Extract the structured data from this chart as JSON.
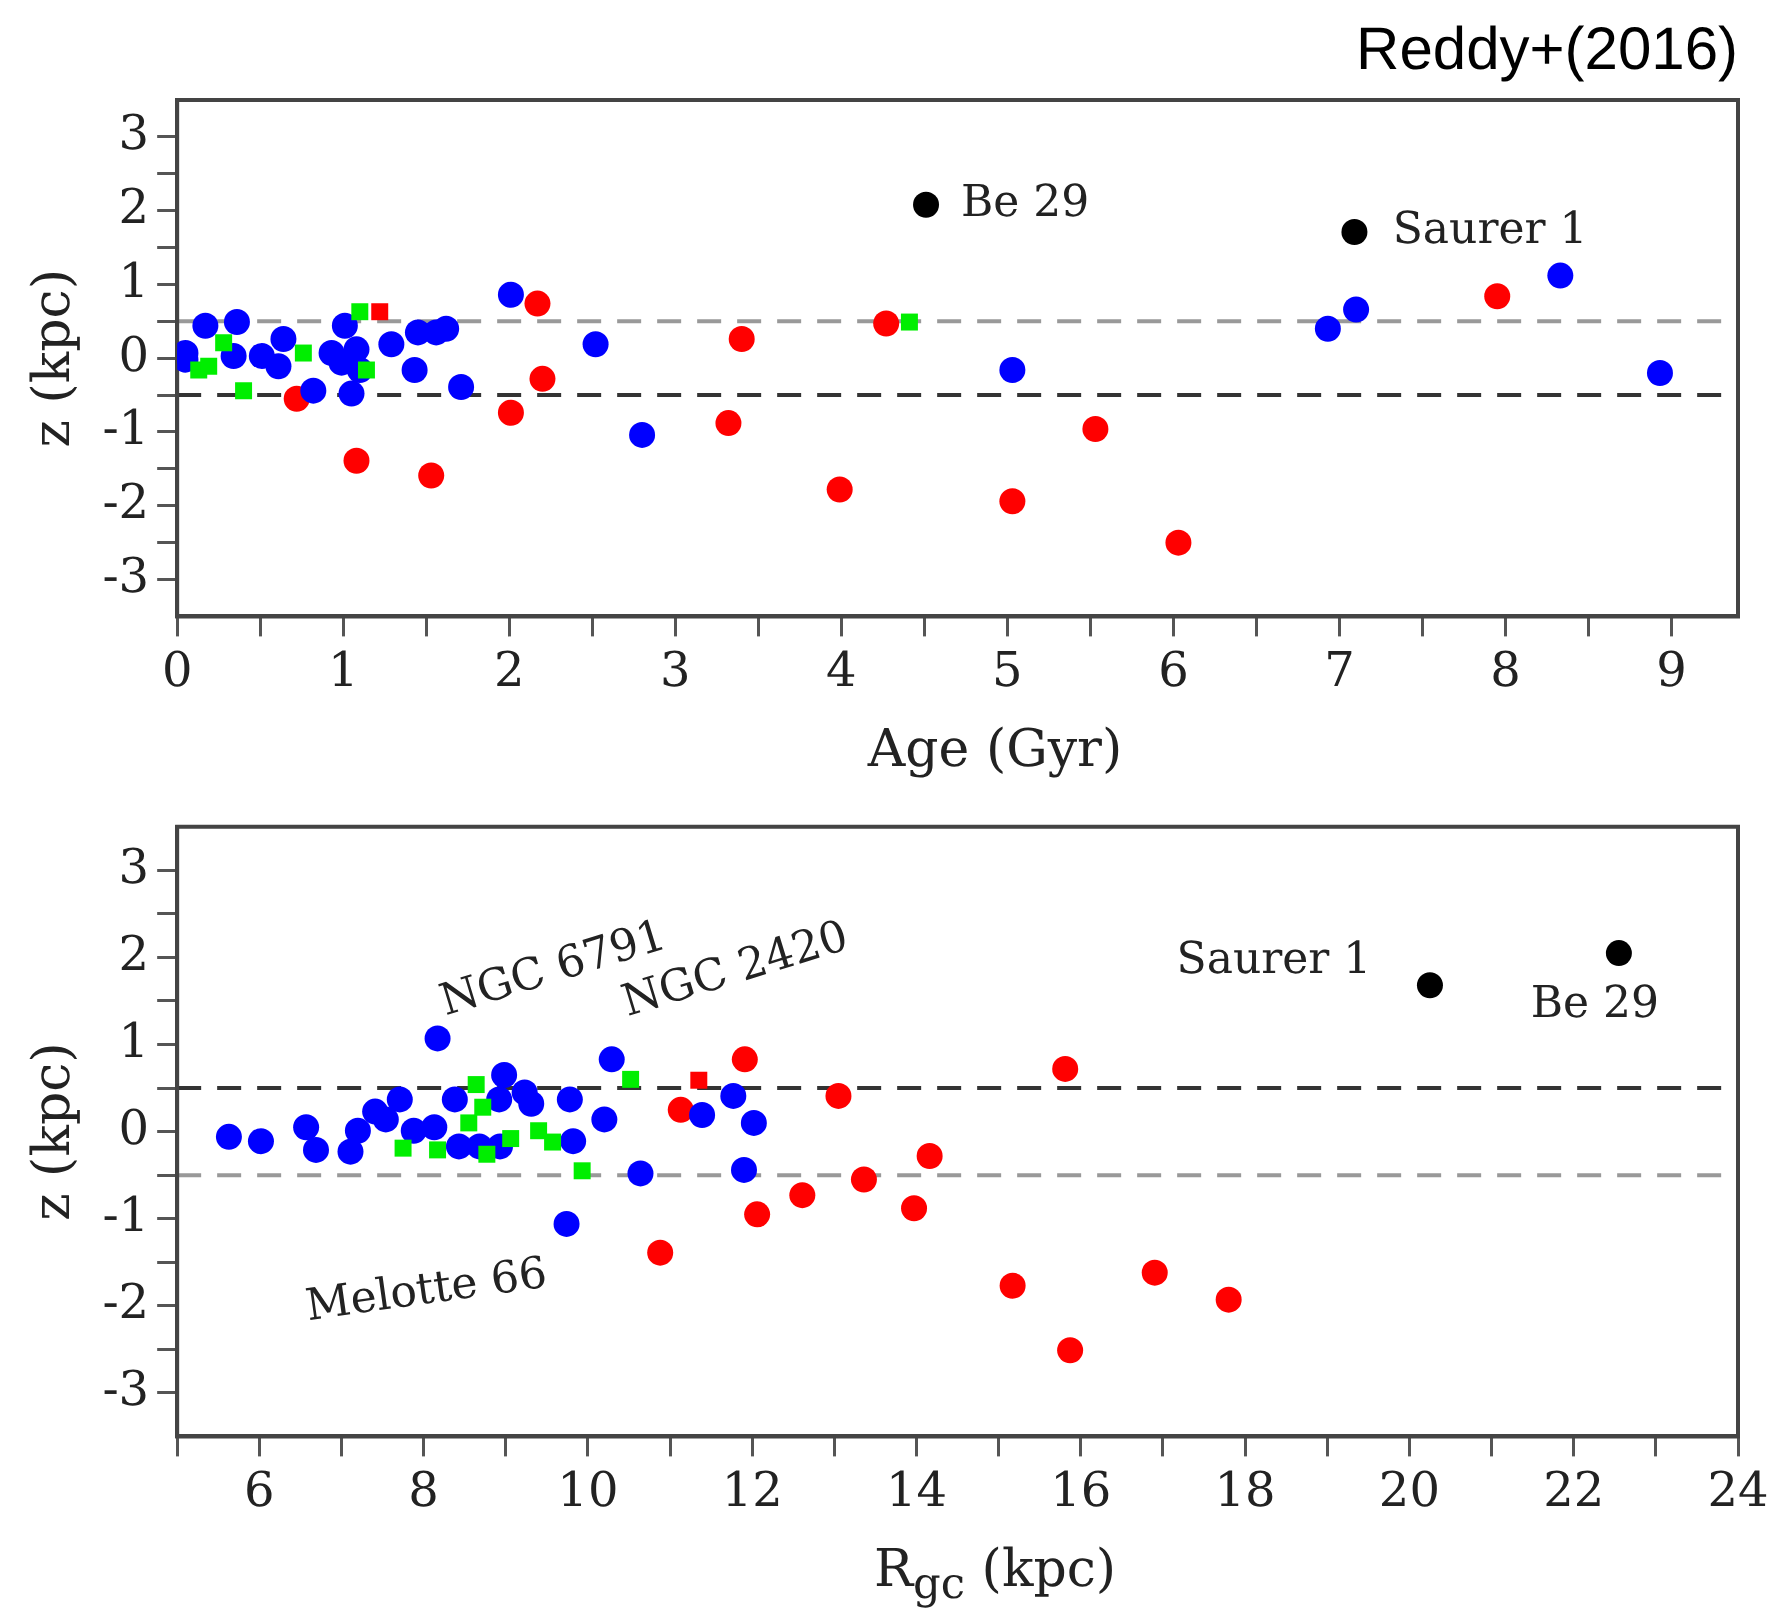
{
  "chart_data": [
    {
      "type": "scatter",
      "title": "Reddy+(2016)",
      "xlabel": "Age (Gyr)",
      "ylabel": "z (kpc)",
      "xlim": [
        0,
        9.4
      ],
      "xticks": [
        0,
        {
          "value": 0.5,
          "label": null
        },
        1,
        {
          "value": 1.5,
          "label": null
        },
        2,
        {
          "value": 2.5,
          "label": null
        },
        3,
        {
          "value": 3.5,
          "label": null
        },
        4,
        {
          "value": 4.5,
          "label": null
        },
        5,
        {
          "value": 5.5,
          "label": null
        },
        6,
        {
          "value": 6.5,
          "label": null
        },
        7,
        {
          "value": 7.5,
          "label": null
        },
        8,
        {
          "value": 8.5,
          "label": null
        },
        9
      ],
      "ylim": [
        -3.5,
        3.5
      ],
      "yticks": [
        -3,
        {
          "value": -2.5,
          "label": null
        },
        -2,
        {
          "value": -1.5,
          "label": null
        },
        -1,
        {
          "value": -0.5,
          "label": null
        },
        0,
        {
          "value": 0.5,
          "label": null
        },
        1,
        {
          "value": 1.5,
          "label": null
        },
        2,
        {
          "value": 2.5,
          "label": null
        },
        3
      ],
      "grid": false,
      "legend": false,
      "ref_lines": [
        {
          "axis": "y",
          "value": 0.5,
          "color": "#999999",
          "line_style": "dashed"
        },
        {
          "axis": "y",
          "value": -0.5,
          "color": "#333333",
          "line_style": "dashed"
        }
      ],
      "annotations": [
        {
          "text": "Be 29",
          "x": 4.6,
          "y": 2.08
        },
        {
          "text": "Saurer 1",
          "x": 7.2,
          "y": 1.71
        }
      ],
      "series": [
        {
          "color": "#00ee00",
          "marker": "square",
          "x": [
            0.13,
            0.19,
            0.28,
            0.4,
            0.76,
            1.14,
            1.1,
            4.41
          ],
          "values": [
            -0.16,
            -0.11,
            0.21,
            -0.44,
            0.07,
            -0.16,
            0.63,
            0.49
          ]
        },
        {
          "color": "#0000ff",
          "marker": "circle",
          "x": [
            0.05,
            0.05,
            0.17,
            0.36,
            0.34,
            0.51,
            0.61,
            0.64,
            0.82,
            0.93,
            0.99,
            1.01,
            1.08,
            1.1,
            1.05,
            1.29,
            1.43,
            1.45,
            1.56,
            1.62,
            2.01,
            2.52,
            1.71,
            2.8,
            5.03,
            6.93,
            7.1,
            8.33,
            8.93
          ],
          "values": [
            0.07,
            -0.02,
            0.44,
            0.49,
            0.03,
            0.03,
            -0.11,
            0.26,
            -0.44,
            0.07,
            -0.06,
            0.44,
            0.12,
            -0.16,
            -0.48,
            0.19,
            -0.16,
            0.35,
            0.35,
            0.4,
            0.86,
            0.19,
            -0.39,
            -1.04,
            -0.16,
            0.4,
            0.66,
            1.12,
            -0.2
          ]
        },
        {
          "color": "#ff0000",
          "marker": "circle",
          "x": [
            0.72,
            1.08,
            1.53,
            2.01,
            2.17,
            2.2,
            3.4,
            3.32,
            3.99,
            4.27,
            5.53,
            5.03,
            6.03,
            7.95
          ],
          "values": [
            -0.55,
            -1.39,
            -1.59,
            -0.74,
            0.74,
            -0.28,
            0.26,
            -0.88,
            -1.78,
            0.47,
            -0.96,
            -1.94,
            -2.5,
            0.84
          ]
        },
        {
          "color": "#ff0000",
          "marker": "square",
          "x": [
            1.22
          ],
          "values": [
            0.63
          ]
        },
        {
          "color": "#000000",
          "marker": "circle",
          "x": [
            4.51,
            7.09
          ],
          "values": [
            2.08,
            1.71
          ]
        }
      ]
    },
    {
      "type": "scatter",
      "xlabel": "R$_{gc}$ (kpc)",
      "ylabel": "z (kpc)",
      "xlim": [
        5,
        24
      ],
      "xticks": [
        {
          "value": 5,
          "label": null
        },
        6,
        {
          "value": 7,
          "label": null
        },
        8,
        {
          "value": 9,
          "label": null
        },
        10,
        {
          "value": 11,
          "label": null
        },
        12,
        {
          "value": 13,
          "label": null
        },
        14,
        {
          "value": 15,
          "label": null
        },
        16,
        {
          "value": 17,
          "label": null
        },
        18,
        {
          "value": 19,
          "label": null
        },
        20,
        {
          "value": 21,
          "label": null
        },
        22,
        {
          "value": 23,
          "label": null
        },
        24
      ],
      "ylim": [
        -3.5,
        3.5
      ],
      "yticks": [
        -3,
        {
          "value": -2.5,
          "label": null
        },
        -2,
        {
          "value": -1.5,
          "label": null
        },
        -1,
        {
          "value": -0.5,
          "label": null
        },
        0,
        {
          "value": 0.5,
          "label": null
        },
        1,
        {
          "value": 1.5,
          "label": null
        },
        2,
        {
          "value": 2.5,
          "label": null
        },
        3
      ],
      "grid": false,
      "legend": false,
      "ref_lines": [
        {
          "axis": "y",
          "value": 0.5,
          "color": "#333333",
          "line_style": "dashed"
        },
        {
          "axis": "y",
          "value": -0.5,
          "color": "#999999",
          "line_style": "dashed"
        }
      ],
      "annotations": [
        {
          "text": "NGC 6791",
          "x": 8.17,
          "y": 1.07
        },
        {
          "text": "NGC 2420",
          "x": 10.29,
          "y": 0.83
        },
        {
          "text": "Melotte 66",
          "x": 9.74,
          "y": -1.06
        },
        {
          "text": "Saurer 1",
          "x": 20.25,
          "y": 1.68
        },
        {
          "text": "Be 29",
          "x": 22.55,
          "y": 2.05
        }
      ],
      "series": [
        {
          "color": "#00ee00",
          "marker": "square",
          "x": [
            8.64,
            7.75,
            8.17,
            8.55,
            8.72,
            9.06,
            9.4,
            9.57,
            9.93,
            10.52,
            8.77
          ],
          "values": [
            0.54,
            -0.19,
            -0.21,
            0.1,
            0.28,
            -0.08,
            0.01,
            -0.12,
            -0.45,
            0.6,
            -0.26
          ]
        },
        {
          "color": "#0000ff",
          "marker": "circle",
          "x": [
            5.63,
            6.02,
            6.57,
            6.69,
            7.11,
            7.2,
            7.41,
            7.54,
            7.71,
            7.88,
            8.17,
            8.13,
            8.38,
            8.43,
            8.68,
            8.93,
            8.98,
            8.92,
            9.23,
            9.31,
            9.78,
            9.82,
            9.74,
            10.2,
            10.29,
            10.64,
            11.39,
            11.77,
            12.02,
            11.9
          ],
          "values": [
            -0.06,
            -0.11,
            0.05,
            -0.21,
            -0.23,
            0.01,
            0.23,
            0.14,
            0.37,
            0.01,
            1.07,
            0.05,
            0.37,
            -0.17,
            -0.17,
            -0.17,
            0.65,
            0.37,
            0.45,
            0.32,
            0.37,
            -0.11,
            -1.06,
            0.14,
            0.83,
            -0.48,
            0.19,
            0.41,
            0.1,
            -0.44
          ]
        },
        {
          "color": "#ff0000",
          "marker": "circle",
          "x": [
            11.13,
            11.91,
            10.88,
            12.06,
            12.61,
            13.05,
            13.36,
            13.97,
            14.16,
            15.17,
            15.87,
            15.81,
            16.9,
            17.8
          ],
          "values": [
            0.25,
            0.83,
            -1.39,
            -0.95,
            -0.73,
            0.41,
            -0.55,
            -0.88,
            -0.28,
            -1.77,
            -2.51,
            0.72,
            -1.62,
            -1.93
          ]
        },
        {
          "color": "#ff0000",
          "marker": "square",
          "x": [
            11.35
          ],
          "values": [
            0.59
          ]
        },
        {
          "color": "#000000",
          "marker": "circle",
          "x": [
            20.25,
            22.55
          ],
          "values": [
            1.68,
            2.05
          ]
        }
      ]
    }
  ]
}
